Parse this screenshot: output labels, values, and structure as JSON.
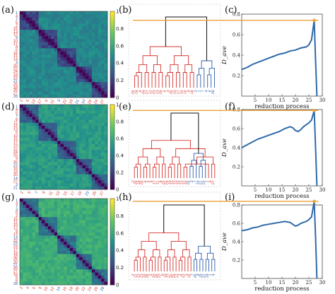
{
  "panel_labels": [
    "(a)",
    "(b)",
    "(c)",
    "(d)",
    "(e)",
    "(f)",
    "(g)",
    "(h)",
    "(i)"
  ],
  "colors": {
    "red": "#d6332f",
    "blue": "#2e5ea8",
    "black": "#111111",
    "orange": "#eaa23a",
    "line": "#2f6aa8"
  },
  "chart_data": [
    {
      "type": "heatmap",
      "panel": "(a)",
      "row_labels": [
        "1",
        "4",
        "7",
        "5",
        "2",
        "15",
        "13",
        "12",
        "9",
        "10",
        "17",
        "8",
        "6",
        "16",
        "11",
        "14",
        "3",
        "20",
        "22",
        "24",
        "19",
        "23",
        "21",
        "26",
        "18",
        "25",
        "27",
        "28"
      ],
      "row_label_colors": [
        "blue",
        "red",
        "blue",
        "red",
        "red",
        "red",
        "red",
        "red",
        "blue",
        "red",
        "red",
        "red",
        "red",
        "red",
        "red",
        "red",
        "blue",
        "red",
        "red",
        "red",
        "red",
        "red",
        "blue",
        "red",
        "red",
        "red",
        "red",
        "blue"
      ],
      "col_labels": [
        "2",
        "5",
        "13",
        "17",
        "6",
        "11",
        "3",
        "22",
        "19",
        "21",
        "14",
        "26",
        "24",
        "27"
      ],
      "col_label_colors": [
        "red",
        "red",
        "red",
        "red",
        "red",
        "red",
        "blue",
        "red",
        "red",
        "blue",
        "blue",
        "red",
        "red",
        "red"
      ],
      "colorbar": {
        "min": 0,
        "max": 1,
        "ticks": [
          "0",
          "0.2",
          "0.4",
          "0.6",
          "0.8",
          "1"
        ]
      }
    },
    {
      "type": "heatmap",
      "panel": "(d)",
      "row_labels": [
        "1",
        "4",
        "5",
        "7",
        "8",
        "11",
        "12",
        "13",
        "6",
        "10",
        "15",
        "17",
        "19",
        "22",
        "24",
        "25",
        "9",
        "26",
        "23",
        "16",
        "18",
        "20",
        "14",
        "27",
        "3",
        "21"
      ],
      "row_label_colors": [
        "blue",
        "red",
        "red",
        "blue",
        "red",
        "red",
        "red",
        "red",
        "red",
        "red",
        "red",
        "red",
        "red",
        "red",
        "red",
        "red",
        "red",
        "red",
        "blue",
        "red",
        "red",
        "red",
        "blue",
        "red",
        "blue",
        "blue"
      ],
      "col_labels": [
        "2",
        "5",
        "7",
        "9",
        "11",
        "13",
        "15",
        "17",
        "19",
        "23",
        "25",
        "27"
      ],
      "col_label_colors": [
        "red",
        "red",
        "blue",
        "red",
        "red",
        "red",
        "red",
        "red",
        "red",
        "blue",
        "red",
        "red"
      ],
      "colorbar": {
        "min": 0,
        "max": 1,
        "ticks": [
          "0",
          "0.2",
          "0.4",
          "0.6",
          "0.8",
          "1"
        ]
      }
    },
    {
      "type": "heatmap",
      "panel": "(g)",
      "row_labels": [
        "1",
        "4",
        "7",
        "3",
        "5",
        "2",
        "15",
        "11",
        "10",
        "12",
        "9",
        "13",
        "14",
        "22",
        "23",
        "24",
        "17",
        "19",
        "18",
        "25",
        "20",
        "21",
        "26",
        "27",
        "16",
        "6",
        "8",
        "28"
      ],
      "row_label_colors": [
        "blue",
        "red",
        "blue",
        "blue",
        "red",
        "red",
        "red",
        "red",
        "red",
        "red",
        "red",
        "red",
        "blue",
        "red",
        "blue",
        "red",
        "red",
        "red",
        "red",
        "red",
        "red",
        "blue",
        "red",
        "red",
        "red",
        "red",
        "red",
        "blue"
      ],
      "col_labels": [
        "2",
        "4",
        "6",
        "8",
        "10",
        "12",
        "14",
        "16",
        "18",
        "20",
        "22",
        "24",
        "26",
        "28"
      ],
      "col_label_colors": [
        "red",
        "red",
        "red",
        "red",
        "red",
        "red",
        "blue",
        "red",
        "red",
        "red",
        "red",
        "red",
        "red",
        "blue"
      ],
      "colorbar": {
        "min": 0,
        "max": 1,
        "ticks": [
          "0",
          "0.2",
          "0.4",
          "0.6",
          "0.8",
          "1"
        ]
      }
    },
    {
      "type": "dendrogram",
      "panel": "(b)",
      "leaf_labels": [
        "25",
        "19",
        "8",
        "24",
        "27",
        "12",
        "23",
        "13",
        "20",
        "5",
        "3",
        "26",
        "10",
        "17",
        "15",
        "16",
        "9",
        "18",
        "2",
        "1",
        "7",
        "4",
        "6",
        "28"
      ],
      "leaf_label_colors": [
        "red",
        "red",
        "red",
        "red",
        "red",
        "red",
        "red",
        "red",
        "red",
        "red",
        "red",
        "red",
        "red",
        "red",
        "red",
        "red",
        "red",
        "red",
        "blue",
        "blue",
        "blue",
        "blue",
        "blue",
        "blue"
      ],
      "threshold": 0.74
    },
    {
      "type": "dendrogram",
      "panel": "(e)",
      "leaf_labels": [
        "2",
        "26",
        "18",
        "20",
        "6",
        "5",
        "9",
        "17",
        "11",
        "8",
        "22",
        "24",
        "19",
        "10",
        "13",
        "15",
        "12",
        "16",
        "25",
        "3",
        "7",
        "14",
        "21",
        "23",
        "1",
        "4",
        "27"
      ],
      "leaf_label_colors": [
        "red",
        "red",
        "red",
        "red",
        "red",
        "red",
        "red",
        "red",
        "red",
        "red",
        "red",
        "red",
        "red",
        "red",
        "red",
        "red",
        "red",
        "red",
        "blue",
        "blue",
        "blue",
        "blue",
        "blue",
        "blue",
        "red",
        "red",
        "red"
      ],
      "threshold": 0.79
    },
    {
      "type": "dendrogram",
      "panel": "(h)",
      "leaf_labels": [
        "2",
        "11",
        "12",
        "13",
        "16",
        "25",
        "5",
        "10",
        "26",
        "27",
        "9",
        "18",
        "17",
        "20",
        "24",
        "14",
        "6",
        "22",
        "3",
        "15",
        "7",
        "28",
        "8",
        "23",
        "21",
        "19",
        "1",
        "4"
      ],
      "leaf_label_colors": [
        "red",
        "red",
        "red",
        "red",
        "red",
        "red",
        "red",
        "red",
        "red",
        "red",
        "red",
        "red",
        "red",
        "red",
        "red",
        "red",
        "red",
        "red",
        "red",
        "red",
        "blue",
        "blue",
        "blue",
        "blue",
        "blue",
        "blue",
        "blue",
        "blue"
      ],
      "threshold": 0.84
    },
    {
      "type": "line",
      "panel": "(c)",
      "xlabel": "reduction process",
      "ylabel": "D_ave",
      "xlim": [
        0,
        30
      ],
      "ylim": [
        0,
        0.8
      ],
      "xticks": [
        5,
        10,
        15,
        20,
        25,
        30
      ],
      "yticks": [
        0.2,
        0.4,
        0.6,
        0.8
      ],
      "x": [
        0,
        2,
        4,
        6,
        8,
        10,
        12,
        14,
        16,
        18,
        20,
        22,
        24,
        25,
        26,
        27,
        27.5,
        28
      ],
      "y": [
        0.26,
        0.28,
        0.31,
        0.33,
        0.35,
        0.37,
        0.39,
        0.41,
        0.42,
        0.44,
        0.45,
        0.47,
        0.48,
        0.5,
        0.55,
        0.74,
        0.35,
        0.0
      ],
      "threshold": 0.74
    },
    {
      "type": "line",
      "panel": "(f)",
      "xlabel": "reduction process",
      "ylabel": "D_ave",
      "xlim": [
        0,
        30
      ],
      "ylim": [
        0,
        0.8
      ],
      "xticks": [
        5,
        10,
        15,
        20,
        25,
        30
      ],
      "yticks": [
        0.2,
        0.4,
        0.6,
        0.8
      ],
      "x": [
        0,
        2,
        4,
        6,
        8,
        10,
        12,
        14,
        16,
        18,
        19,
        20,
        21,
        22,
        23,
        24,
        25,
        26,
        27,
        27.5,
        28
      ],
      "y": [
        0.4,
        0.43,
        0.46,
        0.49,
        0.51,
        0.53,
        0.55,
        0.57,
        0.6,
        0.62,
        0.61,
        0.58,
        0.57,
        0.59,
        0.62,
        0.64,
        0.66,
        0.69,
        0.79,
        0.4,
        0.0
      ],
      "threshold": 0.79
    },
    {
      "type": "line",
      "panel": "(i)",
      "xlabel": "reduction process",
      "ylabel": "D_ave",
      "xlim": [
        0,
        30
      ],
      "ylim": [
        0,
        0.8
      ],
      "xticks": [
        5,
        10,
        15,
        20,
        25,
        30
      ],
      "yticks": [
        0.2,
        0.4,
        0.6,
        0.8
      ],
      "x": [
        0,
        2,
        4,
        6,
        8,
        10,
        12,
        14,
        16,
        18,
        19,
        20,
        21,
        22,
        23,
        24,
        25,
        26,
        27,
        27.5,
        28
      ],
      "y": [
        0.52,
        0.53,
        0.55,
        0.56,
        0.58,
        0.59,
        0.6,
        0.61,
        0.62,
        0.61,
        0.59,
        0.57,
        0.58,
        0.6,
        0.61,
        0.62,
        0.64,
        0.67,
        0.84,
        0.45,
        0.0
      ],
      "threshold": 0.84
    }
  ]
}
